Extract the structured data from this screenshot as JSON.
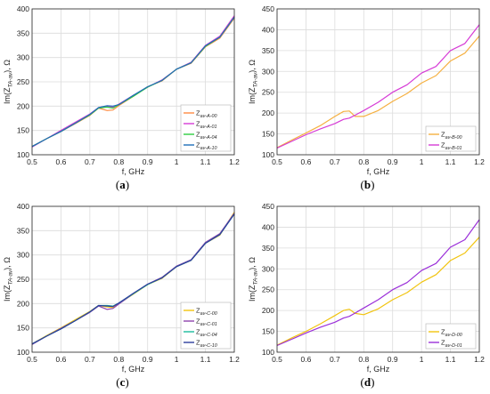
{
  "colors": {
    "axis": "#262626",
    "grid": "#dcdcdc",
    "legend_border": "#bdbdbd"
  },
  "chart_data": [
    {
      "id": "a",
      "type": "line",
      "caption": "a",
      "xlabel": "f, GHz",
      "ylabel": "Im(Z_TA-av), Ω",
      "xlim": [
        0.5,
        1.2
      ],
      "ylim": [
        100,
        400
      ],
      "xticks": [
        "0.5",
        "0.6",
        "0.7",
        "0.8",
        "0.9",
        "1",
        "1.1",
        "1.2"
      ],
      "yticks": [
        "100",
        "150",
        "200",
        "250",
        "300",
        "350",
        "400"
      ],
      "grid": true,
      "legend_position": "bottom-right",
      "x": [
        0.5,
        0.55,
        0.6,
        0.65,
        0.7,
        0.73,
        0.76,
        0.78,
        0.8,
        0.85,
        0.9,
        0.95,
        1.0,
        1.05,
        1.1,
        1.15,
        1.2
      ],
      "series": [
        {
          "name": "Z_av-A-00",
          "color": "#ff8c42",
          "values": [
            117,
            133,
            148,
            164,
            181,
            196,
            191,
            192,
            201,
            220,
            240,
            252,
            276,
            288,
            322,
            340,
            381
          ]
        },
        {
          "name": "Z_av-A-01",
          "color": "#d63bd6",
          "values": [
            116,
            133,
            150,
            167,
            184,
            197,
            200,
            198,
            204,
            222,
            239,
            254,
            276,
            290,
            325,
            344,
            386
          ]
        },
        {
          "name": "Z_av-A-04",
          "color": "#2ecc40",
          "values": [
            117,
            133,
            148,
            165,
            182,
            196,
            198,
            196,
            203,
            220,
            239,
            253,
            276,
            289,
            323,
            342,
            383
          ]
        },
        {
          "name": "Z_av-A-10",
          "color": "#1f6fb8",
          "values": [
            117,
            133,
            148,
            165,
            183,
            197,
            201,
            200,
            203,
            222,
            240,
            253,
            276,
            289,
            324,
            342,
            383
          ]
        }
      ]
    },
    {
      "id": "b",
      "type": "line",
      "caption": "b",
      "xlabel": "f, GHz",
      "ylabel": "Im(Z_TA-av), Ω",
      "xlim": [
        0.5,
        1.2
      ],
      "ylim": [
        100,
        450
      ],
      "xticks": [
        "0.5",
        "0.6",
        "0.7",
        "0.8",
        "0.9",
        "1",
        "1.1",
        "1.2"
      ],
      "yticks": [
        "100",
        "150",
        "200",
        "250",
        "300",
        "350",
        "400",
        "450"
      ],
      "grid": true,
      "legend_position": "bottom-right",
      "x": [
        0.5,
        0.55,
        0.6,
        0.65,
        0.7,
        0.73,
        0.75,
        0.77,
        0.8,
        0.85,
        0.9,
        0.95,
        1.0,
        1.05,
        1.1,
        1.15,
        1.2
      ],
      "series": [
        {
          "name": "Z_av-B-00",
          "color": "#f5b041",
          "values": [
            117,
            135,
            152,
            170,
            192,
            204,
            205,
            192,
            192,
            206,
            228,
            247,
            272,
            290,
            325,
            344,
            385
          ]
        },
        {
          "name": "Z_av-B-01",
          "color": "#d63bd6",
          "values": [
            116,
            132,
            148,
            162,
            175,
            185,
            188,
            195,
            206,
            226,
            250,
            268,
            296,
            312,
            350,
            367,
            412
          ]
        }
      ]
    },
    {
      "id": "c",
      "type": "line",
      "caption": "c",
      "xlabel": "f, GHz",
      "ylabel": "Im(Z_TA-av), Ω",
      "xlim": [
        0.5,
        1.2
      ],
      "ylim": [
        100,
        400
      ],
      "xticks": [
        "0.5",
        "0.6",
        "0.7",
        "0.8",
        "0.9",
        "1",
        "1.1",
        "1.2"
      ],
      "yticks": [
        "100",
        "150",
        "200",
        "250",
        "300",
        "350",
        "400"
      ],
      "grid": true,
      "legend_position": "bottom-right",
      "x": [
        0.5,
        0.55,
        0.6,
        0.65,
        0.7,
        0.73,
        0.76,
        0.78,
        0.8,
        0.85,
        0.9,
        0.95,
        1.0,
        1.05,
        1.1,
        1.15,
        1.2
      ],
      "series": [
        {
          "name": "Z_av-C-00",
          "color": "#f1c40f",
          "values": [
            117,
            134,
            150,
            167,
            184,
            196,
            193,
            192,
            200,
            219,
            239,
            252,
            276,
            289,
            324,
            341,
            388
          ]
        },
        {
          "name": "Z_av-C-01",
          "color": "#8e44ad",
          "values": [
            116,
            133,
            149,
            165,
            182,
            195,
            188,
            190,
            199,
            220,
            240,
            254,
            277,
            290,
            326,
            344,
            386
          ]
        },
        {
          "name": "Z_av-C-04",
          "color": "#1abc9c",
          "values": [
            117,
            133,
            148,
            165,
            183,
            196,
            196,
            195,
            201,
            220,
            239,
            253,
            276,
            289,
            324,
            342,
            384
          ]
        },
        {
          "name": "Z_av-C-10",
          "color": "#2c3e9e",
          "values": [
            117,
            133,
            148,
            165,
            183,
            196,
            195,
            194,
            201,
            221,
            240,
            253,
            276,
            289,
            324,
            342,
            384
          ]
        }
      ]
    },
    {
      "id": "d",
      "type": "line",
      "caption": "d",
      "xlabel": "f, GHz",
      "ylabel": "Im(Z_TA-av), Ω",
      "xlim": [
        0.5,
        1.2
      ],
      "ylim": [
        100,
        450
      ],
      "xticks": [
        "0.5",
        "0.6",
        "0.7",
        "0.8",
        "0.9",
        "1",
        "1.1",
        "1.2"
      ],
      "yticks": [
        "100",
        "150",
        "200",
        "250",
        "300",
        "350",
        "400",
        "450"
      ],
      "grid": true,
      "legend_position": "bottom-right",
      "x": [
        0.5,
        0.55,
        0.6,
        0.65,
        0.7,
        0.73,
        0.75,
        0.77,
        0.8,
        0.85,
        0.9,
        0.95,
        1.0,
        1.05,
        1.1,
        1.15,
        1.2
      ],
      "series": [
        {
          "name": "Z_av-D-00",
          "color": "#f1c40f",
          "values": [
            117,
            134,
            150,
            168,
            188,
            200,
            203,
            193,
            190,
            204,
            226,
            243,
            268,
            286,
            320,
            338,
            376
          ]
        },
        {
          "name": "Z_av-D-01",
          "color": "#9b30d9",
          "values": [
            116,
            131,
            146,
            160,
            172,
            182,
            186,
            194,
            206,
            226,
            250,
            267,
            296,
            313,
            352,
            370,
            418
          ]
        }
      ]
    }
  ]
}
